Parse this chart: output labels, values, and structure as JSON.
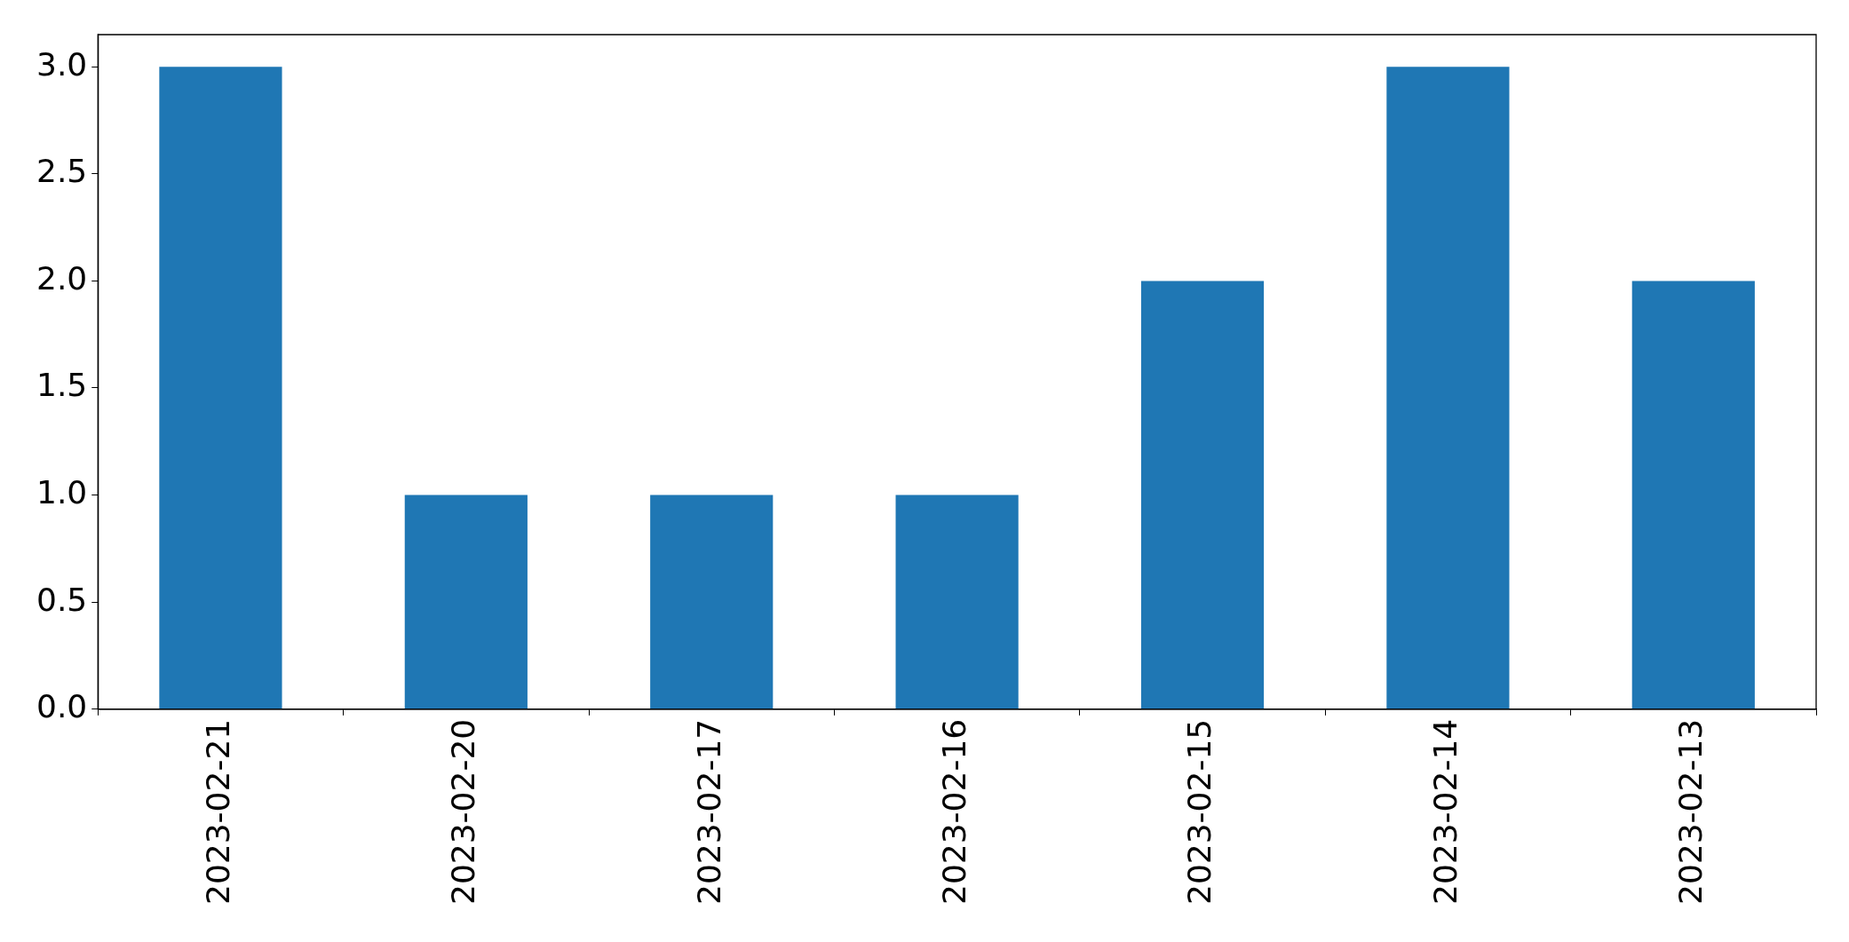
{
  "chart_data": {
    "type": "bar",
    "categories": [
      "2023-02-21",
      "2023-02-20",
      "2023-02-17",
      "2023-02-16",
      "2023-02-15",
      "2023-02-14",
      "2023-02-13"
    ],
    "values": [
      3,
      1,
      1,
      1,
      2,
      3,
      2
    ],
    "color": "#1f77b4",
    "ylim": [
      0,
      3.15
    ],
    "yticks": [
      {
        "value": 0,
        "label": "0.0"
      },
      {
        "value": 0.5,
        "label": "0.5"
      },
      {
        "value": 1,
        "label": "1.0"
      },
      {
        "value": 1.5,
        "label": "1.5"
      },
      {
        "value": 2,
        "label": "2.0"
      },
      {
        "value": 2.5,
        "label": "2.5"
      },
      {
        "value": 3,
        "label": "3.0"
      }
    ]
  }
}
